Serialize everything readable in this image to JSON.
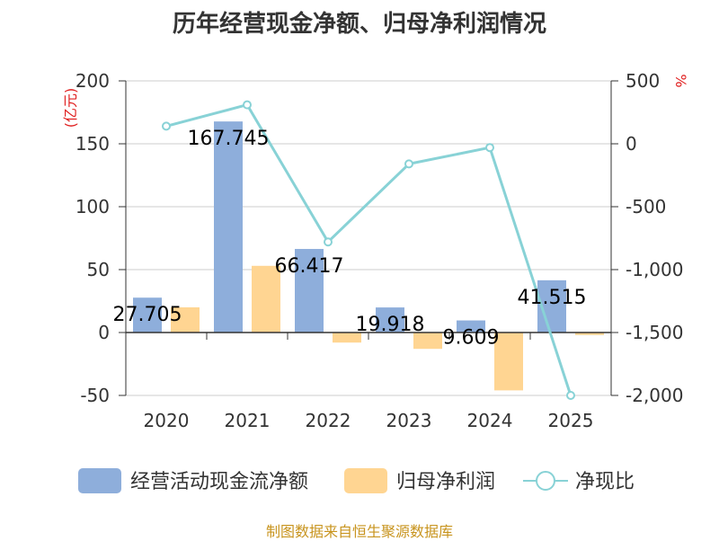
{
  "chart_data": {
    "type": "bar",
    "title": "历年经营现金净额、归母净利润情况",
    "categories": [
      "2020",
      "2021",
      "2022",
      "2023",
      "2024",
      "2025"
    ],
    "series": [
      {
        "name": "经营活动现金流净额",
        "kind": "bar",
        "axis": "left",
        "color": "#8eaedb",
        "values": [
          27.705,
          167.745,
          66.417,
          19.918,
          9.609,
          41.515
        ],
        "labels": [
          "27.705",
          "167.745",
          "66.417",
          "19.918",
          "9.609",
          "41.515"
        ]
      },
      {
        "name": "归母净利润",
        "kind": "bar",
        "axis": "left",
        "color": "#ffd592",
        "values": [
          20,
          53,
          -8,
          -13,
          -46,
          -2
        ]
      },
      {
        "name": "净现比",
        "kind": "line",
        "axis": "right",
        "color": "#88d2d6",
        "values": [
          140,
          310,
          -780,
          -160,
          -30,
          -2000
        ]
      }
    ],
    "y_left": {
      "unit": "(亿元)",
      "ylim": [
        -50,
        200
      ],
      "ticks": [
        200,
        150,
        100,
        50,
        0,
        -50
      ],
      "tick_labels": [
        "200",
        "150",
        "100",
        "50",
        "0",
        "-50"
      ]
    },
    "y_right": {
      "unit": "%",
      "ylim": [
        -2000,
        500
      ],
      "ticks": [
        500,
        0,
        -500,
        -1000,
        -1500,
        -2000
      ],
      "tick_labels": [
        "500",
        "0",
        "-500",
        "-1,000",
        "-1,500",
        "-2,000"
      ]
    },
    "grid": true,
    "legend_position": "bottom"
  },
  "source_note": "制图数据来自恒生聚源数据库"
}
